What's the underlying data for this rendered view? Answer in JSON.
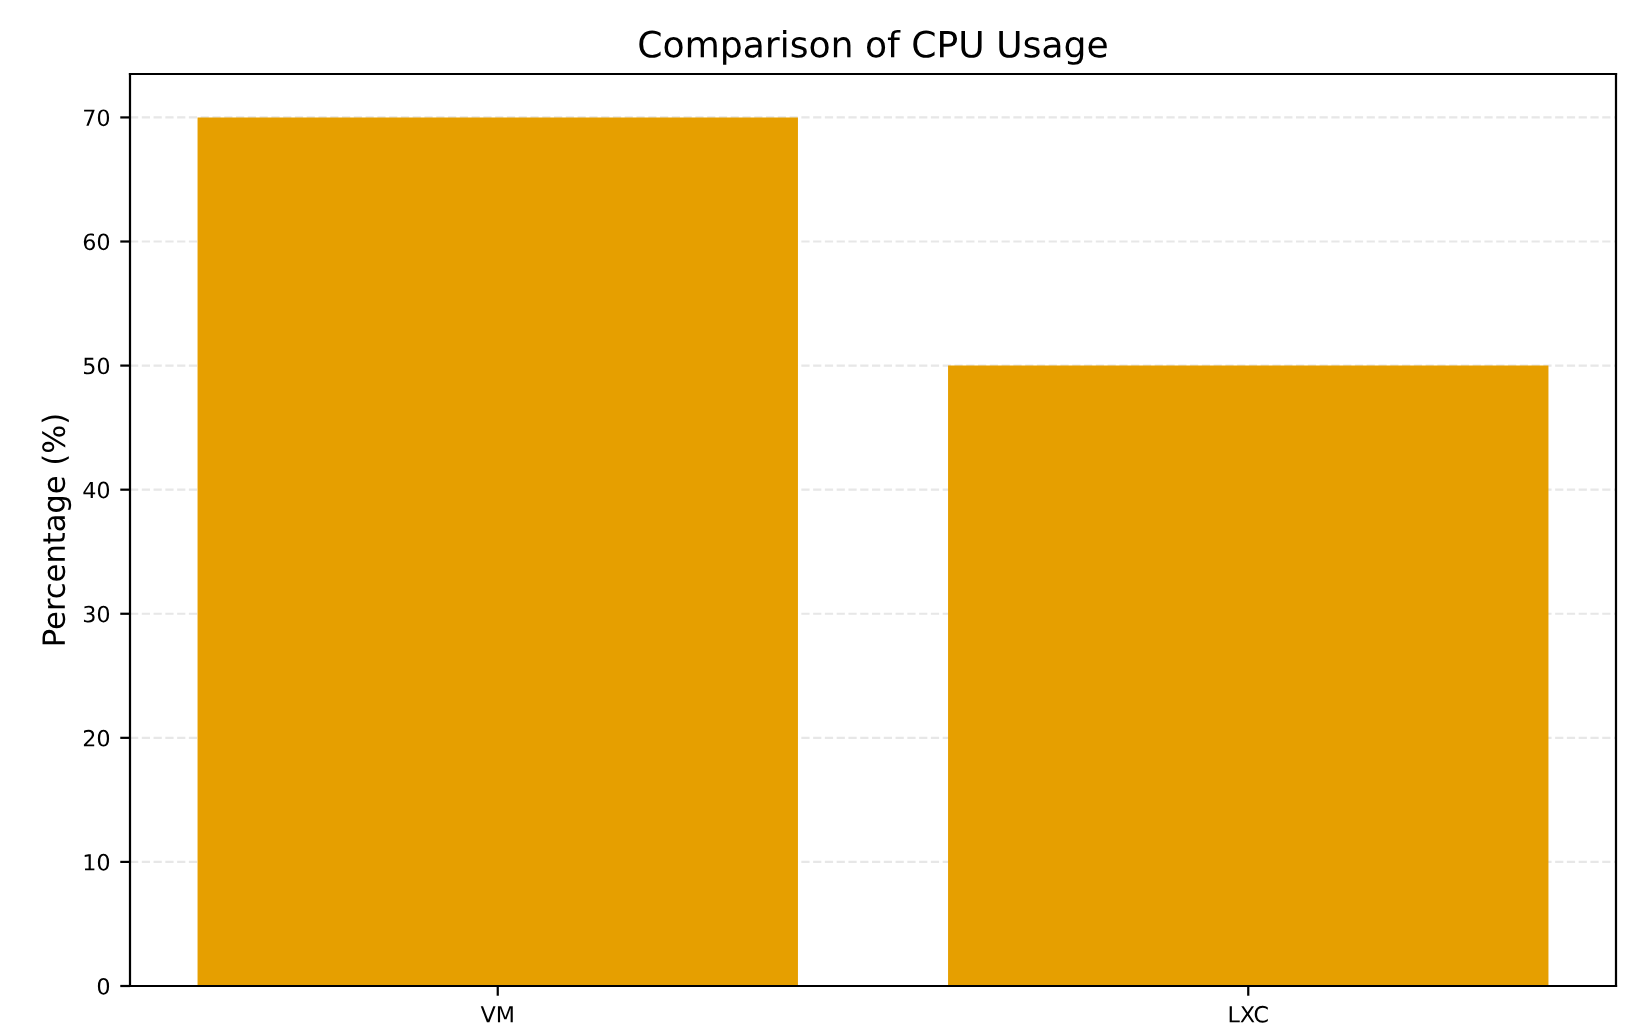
{
  "chart_data": {
    "type": "bar",
    "title": "Comparison of CPU Usage",
    "ylabel": "Percentage (%)",
    "categories": [
      "VM",
      "LXC"
    ],
    "values": [
      70,
      50
    ],
    "color": "#e69f00",
    "ylim": [
      0,
      73.5
    ],
    "yticks": [
      0,
      10,
      20,
      30,
      40,
      50,
      60,
      70
    ],
    "grid": "y"
  }
}
